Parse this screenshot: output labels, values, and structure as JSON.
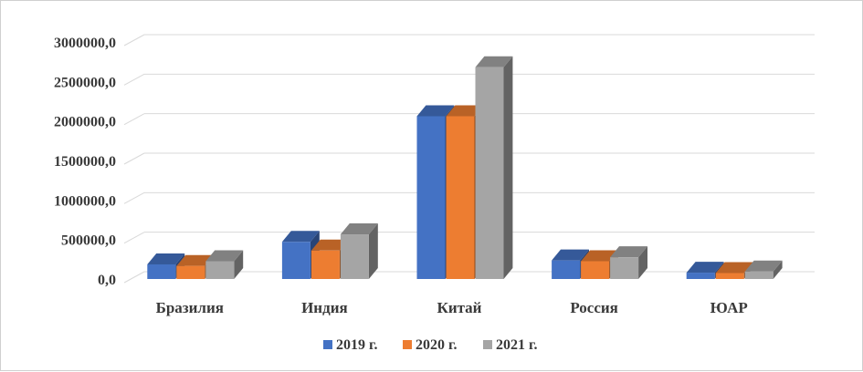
{
  "chart_data": {
    "type": "bar",
    "categories": [
      "Бразилия",
      "Индия",
      "Китай",
      "Россия",
      "ЮАР"
    ],
    "series": [
      {
        "name": "2019 г.",
        "color": "#4472C4",
        "values": [
          185000,
          470000,
          2060000,
          235000,
          80000
        ]
      },
      {
        "name": "2020 г.",
        "color": "#ED7D31",
        "values": [
          165000,
          360000,
          2060000,
          225000,
          75000
        ]
      },
      {
        "name": "2021 г.",
        "color": "#A5A5A5",
        "values": [
          225000,
          565000,
          2680000,
          275000,
          95000
        ]
      }
    ],
    "y_ticks": [
      "0,0",
      "500000,0",
      "1000000,0",
      "1500000,0",
      "2000000,0",
      "2500000,0",
      "3000000,0"
    ],
    "ylim": [
      0,
      3000000
    ],
    "grid": true,
    "legend": "bottom",
    "style": "3d-clustered-column"
  }
}
